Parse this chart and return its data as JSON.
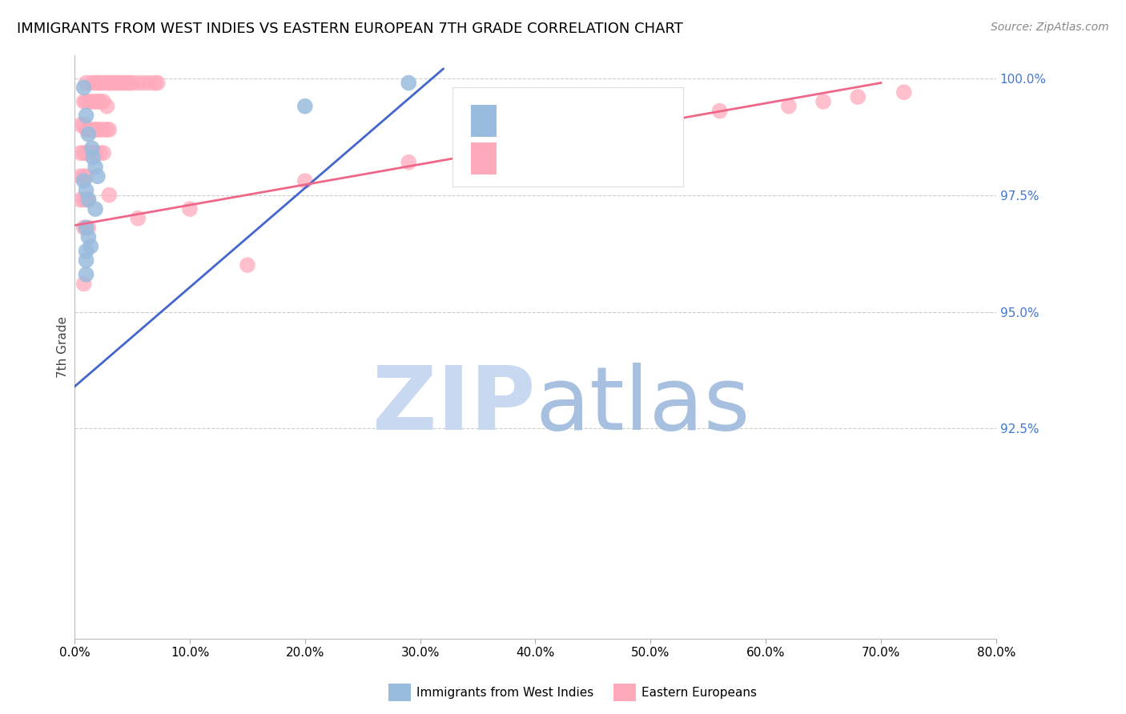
{
  "title": "IMMIGRANTS FROM WEST INDIES VS EASTERN EUROPEAN 7TH GRADE CORRELATION CHART",
  "source": "Source: ZipAtlas.com",
  "ylabel": "7th Grade",
  "legend_label_blue": "Immigrants from West Indies",
  "legend_label_pink": "Eastern Europeans",
  "blue_color": "#99BBDD",
  "pink_color": "#FFAABB",
  "blue_line_color": "#4466CC",
  "pink_line_color": "#EE6688",
  "watermark_zip_color": "#C8D8F0",
  "watermark_atlas_color": "#A8C0E0",
  "right_tick_color": "#4477CC",
  "blue_scatter": [
    [
      0.008,
      0.998
    ],
    [
      0.01,
      0.992
    ],
    [
      0.012,
      0.988
    ],
    [
      0.015,
      0.985
    ],
    [
      0.016,
      0.983
    ],
    [
      0.018,
      0.981
    ],
    [
      0.02,
      0.979
    ],
    [
      0.008,
      0.978
    ],
    [
      0.01,
      0.976
    ],
    [
      0.012,
      0.974
    ],
    [
      0.018,
      0.972
    ],
    [
      0.01,
      0.968
    ],
    [
      0.012,
      0.966
    ],
    [
      0.014,
      0.964
    ],
    [
      0.01,
      0.963
    ],
    [
      0.01,
      0.961
    ],
    [
      0.01,
      0.958
    ],
    [
      0.2,
      0.994
    ],
    [
      0.29,
      0.999
    ]
  ],
  "pink_scatter": [
    [
      0.01,
      0.999
    ],
    [
      0.015,
      0.999
    ],
    [
      0.018,
      0.999
    ],
    [
      0.02,
      0.999
    ],
    [
      0.022,
      0.999
    ],
    [
      0.025,
      0.999
    ],
    [
      0.028,
      0.999
    ],
    [
      0.03,
      0.999
    ],
    [
      0.032,
      0.999
    ],
    [
      0.035,
      0.999
    ],
    [
      0.038,
      0.999
    ],
    [
      0.04,
      0.999
    ],
    [
      0.042,
      0.999
    ],
    [
      0.045,
      0.999
    ],
    [
      0.048,
      0.999
    ],
    [
      0.05,
      0.999
    ],
    [
      0.055,
      0.999
    ],
    [
      0.06,
      0.999
    ],
    [
      0.065,
      0.999
    ],
    [
      0.07,
      0.999
    ],
    [
      0.072,
      0.999
    ],
    [
      0.008,
      0.995
    ],
    [
      0.01,
      0.995
    ],
    [
      0.012,
      0.995
    ],
    [
      0.015,
      0.995
    ],
    [
      0.018,
      0.995
    ],
    [
      0.02,
      0.995
    ],
    [
      0.022,
      0.995
    ],
    [
      0.025,
      0.995
    ],
    [
      0.028,
      0.994
    ],
    [
      0.005,
      0.99
    ],
    [
      0.008,
      0.99
    ],
    [
      0.01,
      0.989
    ],
    [
      0.012,
      0.989
    ],
    [
      0.015,
      0.989
    ],
    [
      0.018,
      0.989
    ],
    [
      0.02,
      0.989
    ],
    [
      0.022,
      0.989
    ],
    [
      0.025,
      0.989
    ],
    [
      0.028,
      0.989
    ],
    [
      0.03,
      0.989
    ],
    [
      0.005,
      0.984
    ],
    [
      0.008,
      0.984
    ],
    [
      0.01,
      0.984
    ],
    [
      0.012,
      0.984
    ],
    [
      0.015,
      0.984
    ],
    [
      0.018,
      0.984
    ],
    [
      0.022,
      0.984
    ],
    [
      0.025,
      0.984
    ],
    [
      0.005,
      0.979
    ],
    [
      0.008,
      0.979
    ],
    [
      0.01,
      0.979
    ],
    [
      0.005,
      0.974
    ],
    [
      0.008,
      0.974
    ],
    [
      0.01,
      0.974
    ],
    [
      0.012,
      0.974
    ],
    [
      0.03,
      0.975
    ],
    [
      0.008,
      0.968
    ],
    [
      0.01,
      0.968
    ],
    [
      0.012,
      0.968
    ],
    [
      0.055,
      0.97
    ],
    [
      0.1,
      0.972
    ],
    [
      0.2,
      0.978
    ],
    [
      0.29,
      0.982
    ],
    [
      0.38,
      0.986
    ],
    [
      0.47,
      0.99
    ],
    [
      0.56,
      0.993
    ],
    [
      0.62,
      0.994
    ],
    [
      0.65,
      0.995
    ],
    [
      0.68,
      0.996
    ],
    [
      0.72,
      0.997
    ],
    [
      0.15,
      0.96
    ],
    [
      0.008,
      0.956
    ]
  ],
  "xlim": [
    0.0,
    0.8
  ],
  "ylim": [
    0.88,
    1.005
  ],
  "right_yticks": [
    1.0,
    0.975,
    0.95,
    0.925
  ],
  "right_ylabels": [
    "100.0%",
    "97.5%",
    "95.0%",
    "92.5%"
  ],
  "xtick_labels": [
    "0.0%",
    "10.0%",
    "20.0%",
    "30.0%",
    "40.0%",
    "50.0%",
    "60.0%",
    "70.0%",
    "80.0%"
  ],
  "xtick_values": [
    0.0,
    0.1,
    0.2,
    0.3,
    0.4,
    0.5,
    0.6,
    0.7,
    0.8
  ],
  "blue_line_x": [
    0.0,
    0.32
  ],
  "blue_line_y": [
    0.934,
    1.002
  ],
  "pink_line_x": [
    0.0,
    0.7
  ],
  "pink_line_y": [
    0.9685,
    0.999
  ]
}
